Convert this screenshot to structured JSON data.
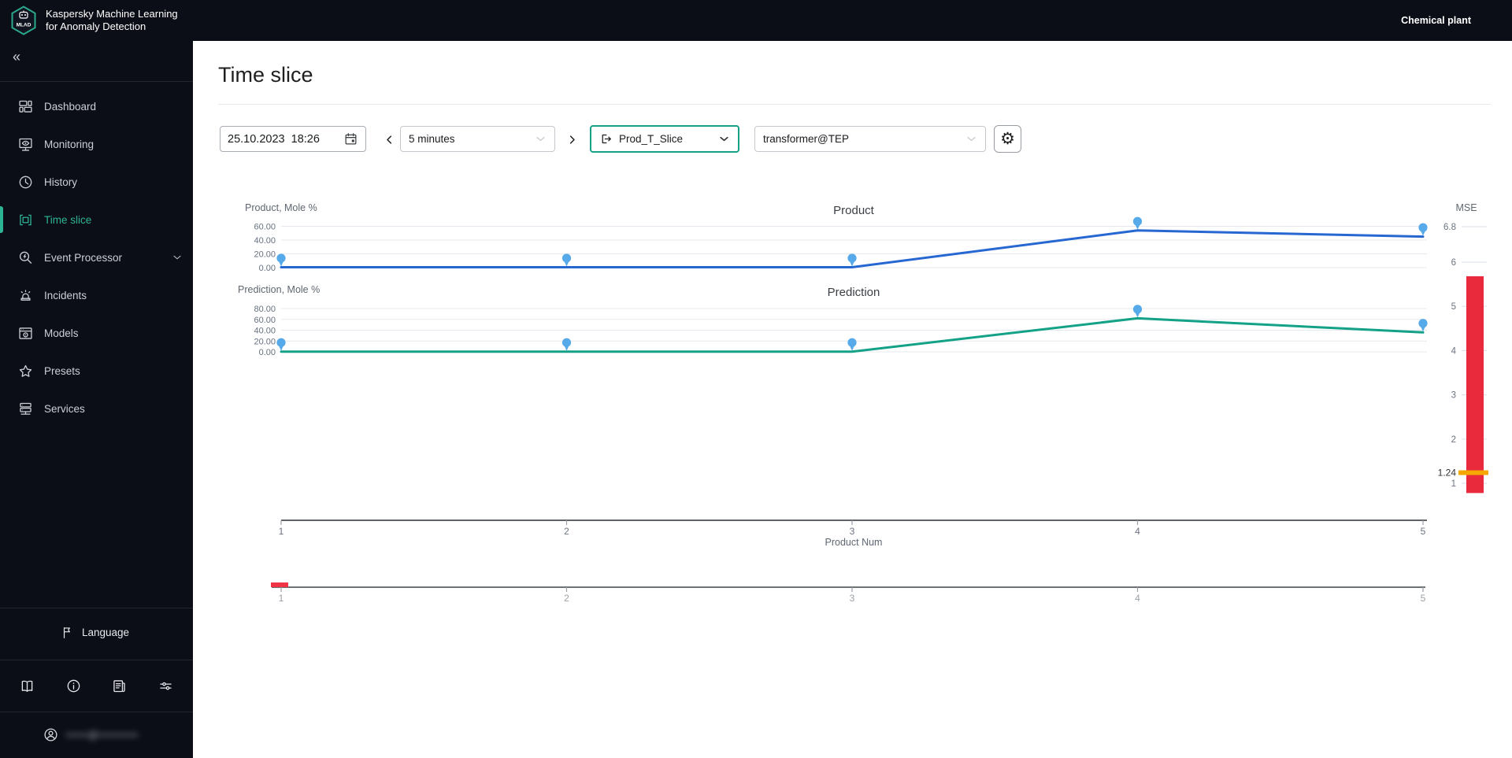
{
  "app": {
    "logo_text": "MLAD",
    "title_line1": "Kaspersky Machine Learning",
    "title_line2": "for Anomaly Detection",
    "environment": "Chemical plant"
  },
  "sidebar": {
    "items": [
      {
        "label": "Dashboard"
      },
      {
        "label": "Monitoring"
      },
      {
        "label": "History"
      },
      {
        "label": "Time slice",
        "active": true
      },
      {
        "label": "Event Processor",
        "expandable": true
      },
      {
        "label": "Incidents"
      },
      {
        "label": "Models"
      },
      {
        "label": "Presets"
      },
      {
        "label": "Services"
      }
    ],
    "language_label": "Language",
    "user_email_masked": "•••••@•••••••••"
  },
  "page": {
    "title": "Time slice"
  },
  "toolbar": {
    "datetime_value": "25.10.2023  18:26",
    "interval_value": "5 minutes",
    "slice_value": "Prod_T_Slice",
    "model_value": "transformer@TEP"
  },
  "colors": {
    "accent_teal": "#2db495",
    "product_line": "#2767d2",
    "prediction_line": "#13a287",
    "marker_blue": "#56aae9",
    "mse_bar_red": "#e9293c",
    "mse_threshold_orange": "#f7a800",
    "slider_marker_red": "#ee3347"
  },
  "chart_data": [
    {
      "type": "line",
      "title": "Product",
      "ylabel": "Product, Mole %",
      "x": [
        1,
        2,
        3,
        4,
        5
      ],
      "values": [
        0.6,
        0.6,
        0.6,
        54,
        45
      ],
      "yticks": [
        0,
        20,
        40,
        60
      ],
      "ytick_labels": [
        "0.00",
        "20.00",
        "40.00",
        "60.00"
      ],
      "ylim": [
        0,
        75
      ],
      "grid": true,
      "color": "#2767d2",
      "marker_color": "#56aae9"
    },
    {
      "type": "line",
      "title": "Prediction",
      "ylabel": "Prediction, Mole %",
      "x": [
        1,
        2,
        3,
        4,
        5
      ],
      "values": [
        0.4,
        0.4,
        0.4,
        62,
        36
      ],
      "yticks": [
        0,
        20,
        40,
        60,
        80
      ],
      "ytick_labels": [
        "0.00",
        "20.00",
        "40.00",
        "60.00",
        "80.00"
      ],
      "ylim": [
        0,
        100
      ],
      "grid": true,
      "color": "#13a287",
      "marker_color": "#56aae9"
    },
    {
      "type": "gauge",
      "title": "MSE",
      "ticks": [
        1,
        2,
        3,
        4,
        5,
        6
      ],
      "top_tick_label": "6.8",
      "bar_min": 0.78,
      "bar_max": 5.68,
      "threshold": 1.24,
      "threshold_label": "1.24",
      "bar_color": "#e9293c",
      "threshold_color": "#f7a800"
    },
    {
      "type": "x-axis",
      "xlabel": "Product Num",
      "xticks": [
        1,
        2,
        3,
        4,
        5
      ]
    },
    {
      "type": "slider",
      "xticks": [
        1,
        2,
        3,
        4,
        5
      ],
      "selection_x": 1,
      "selection_color": "#ee3347"
    }
  ]
}
